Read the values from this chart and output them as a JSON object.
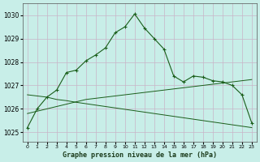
{
  "title": "Graphe pression niveau de la mer (hPa)",
  "bg_color": "#c8eee8",
  "grid_color": "#c8b4c8",
  "line_color": "#1a5e1a",
  "xlim": [
    -0.5,
    23.5
  ],
  "ylim": [
    1024.6,
    1030.5
  ],
  "yticks": [
    1025,
    1026,
    1027,
    1028,
    1029,
    1030
  ],
  "xticks": [
    0,
    1,
    2,
    3,
    4,
    5,
    6,
    7,
    8,
    9,
    10,
    11,
    12,
    13,
    14,
    15,
    16,
    17,
    18,
    19,
    20,
    21,
    22,
    23
  ],
  "main_line": [
    1025.2,
    1026.0,
    1026.5,
    1026.8,
    1027.55,
    1027.65,
    1028.05,
    1028.3,
    1028.6,
    1029.25,
    1029.5,
    1030.05,
    1029.45,
    1029.0,
    1028.55,
    1027.4,
    1027.15,
    1027.4,
    1027.35,
    1027.2,
    1027.15,
    1027.0,
    1026.6,
    1025.4
  ],
  "trend_up": [
    1025.8,
    1025.9,
    1026.0,
    1026.1,
    1026.2,
    1026.3,
    1026.4,
    1026.45,
    1026.5,
    1026.55,
    1026.6,
    1026.65,
    1026.7,
    1026.75,
    1026.8,
    1026.85,
    1026.9,
    1026.95,
    1027.0,
    1027.05,
    1027.1,
    1027.15,
    1027.2,
    1027.25
  ],
  "trend_down": [
    1026.6,
    1026.55,
    1026.5,
    1026.4,
    1026.35,
    1026.28,
    1026.22,
    1026.16,
    1026.1,
    1026.04,
    1025.98,
    1025.92,
    1025.86,
    1025.8,
    1025.74,
    1025.68,
    1025.62,
    1025.56,
    1025.5,
    1025.44,
    1025.38,
    1025.32,
    1025.26,
    1025.2
  ],
  "figsize": [
    3.2,
    2.0
  ],
  "dpi": 100
}
